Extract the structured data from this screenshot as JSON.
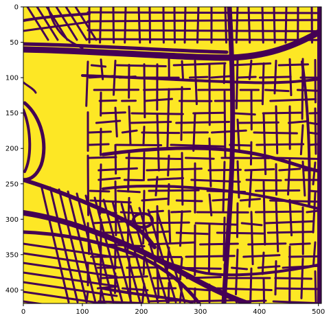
{
  "figure": {
    "background": "#ffffff",
    "colormap": "viridis",
    "colors": {
      "road": "#440154",
      "background": "#fde725"
    },
    "x_axis": {
      "ticks": [
        0,
        100,
        200,
        300,
        400,
        500
      ],
      "range": [
        0,
        505
      ]
    },
    "y_axis": {
      "ticks": [
        0,
        50,
        100,
        150,
        200,
        250,
        300,
        350,
        400
      ],
      "range": [
        0,
        419
      ],
      "inverted": true
    },
    "content": "binary road segmentation mask"
  }
}
